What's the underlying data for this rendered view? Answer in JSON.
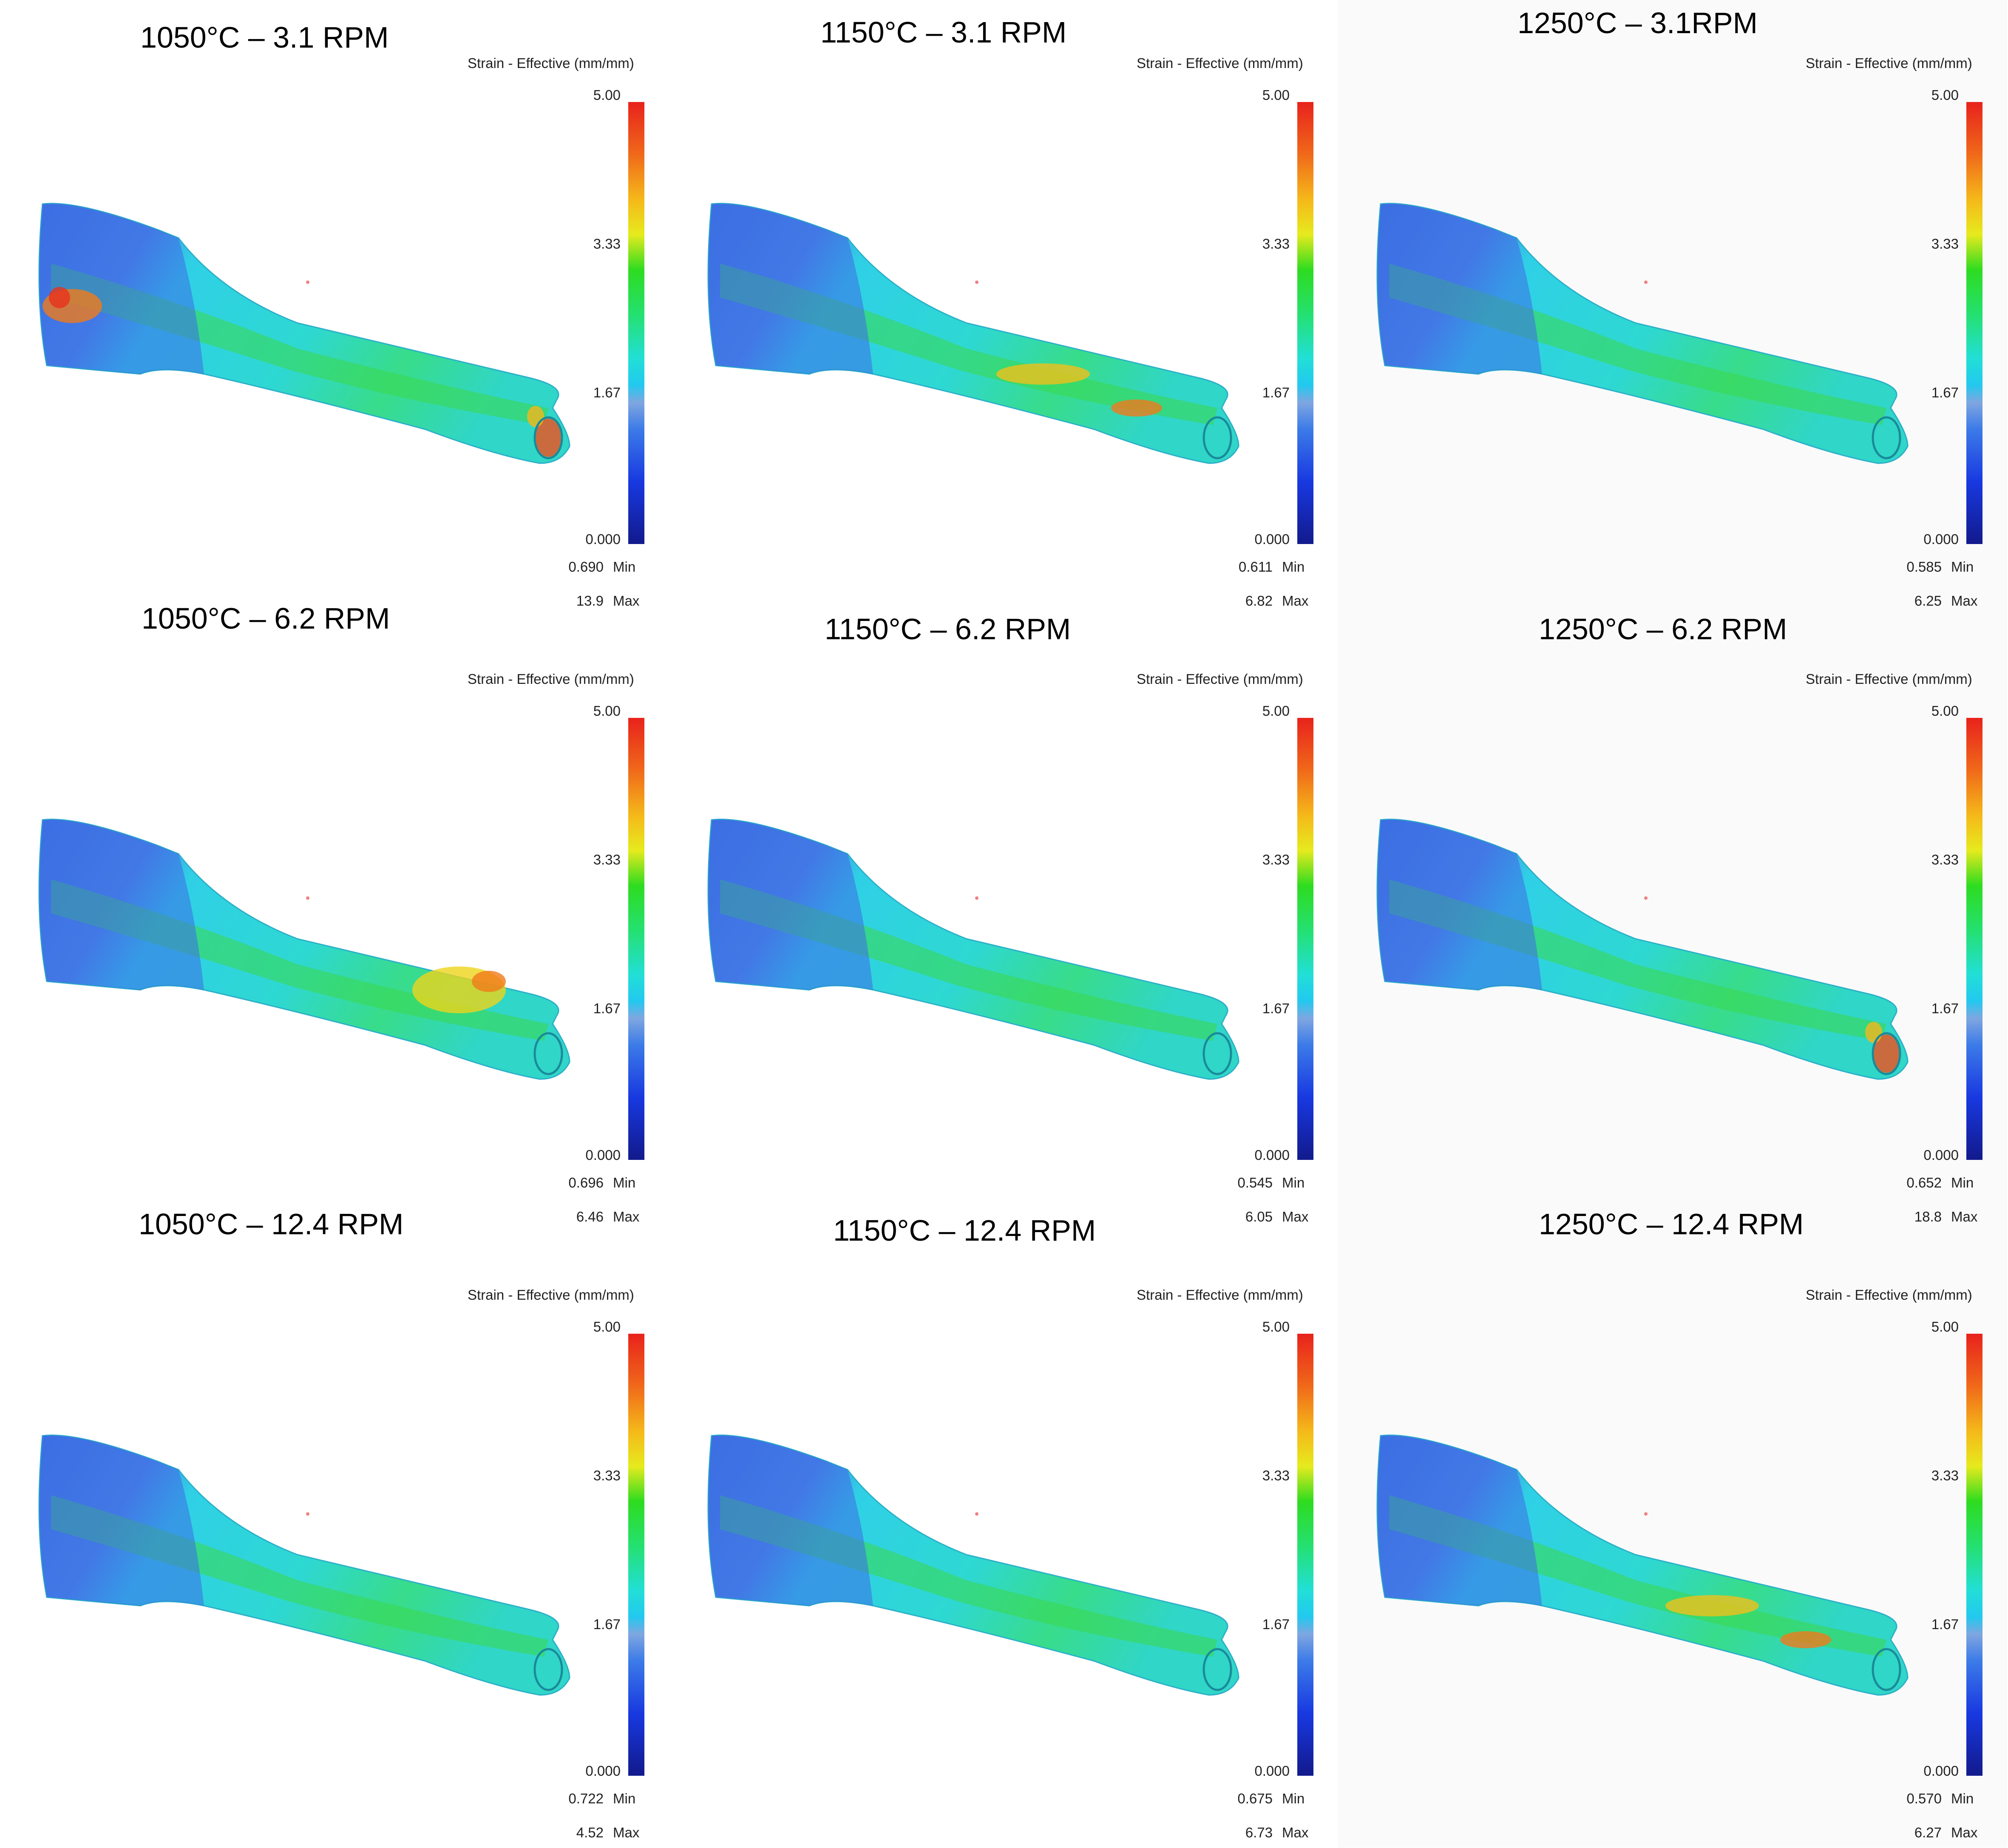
{
  "legend_title": "Strain - Effective (mm/mm)",
  "colorbar_ticks": [
    "5.00",
    "3.33",
    "1.67",
    "0.000"
  ],
  "min_label": "Min",
  "max_label": "Max",
  "colorscale": [
    "#121a8c",
    "#1838e0",
    "#3c7be8",
    "#7fa6e0",
    "#22c9ef",
    "#22dfd6",
    "#24e070",
    "#2edc20",
    "#e6ea1d",
    "#f5b81a",
    "#f06a1a",
    "#e8221c"
  ],
  "panels": [
    {
      "title": "1050°C – 3.1 RPM",
      "min": "0.690",
      "max": "13.9",
      "hot_spots": "left-edge, tip"
    },
    {
      "title": "1150°C – 3.1 RPM",
      "min": "0.611",
      "max": "6.82",
      "hot_spots": "mid-body"
    },
    {
      "title": "1250°C – 3.1RPM",
      "min": "0.585",
      "max": "6.25",
      "hot_spots": "none"
    },
    {
      "title": "1050°C – 6.2 RPM",
      "min": "0.696",
      "max": "6.46",
      "hot_spots": "upper-right"
    },
    {
      "title": "1150°C – 6.2 RPM",
      "min": "0.545",
      "max": "6.05",
      "hot_spots": "none"
    },
    {
      "title": "1250°C – 6.2 RPM",
      "min": "0.652",
      "max": "18.8",
      "hot_spots": "tip"
    },
    {
      "title": "1050°C – 12.4 RPM",
      "min": "0.722",
      "max": "4.52",
      "hot_spots": "none"
    },
    {
      "title": "1150°C – 12.4 RPM",
      "min": "0.675",
      "max": "6.73",
      "hot_spots": "none"
    },
    {
      "title": "1250°C – 12.4 RPM",
      "min": "0.570",
      "max": "6.27",
      "hot_spots": "mid-body"
    }
  ]
}
